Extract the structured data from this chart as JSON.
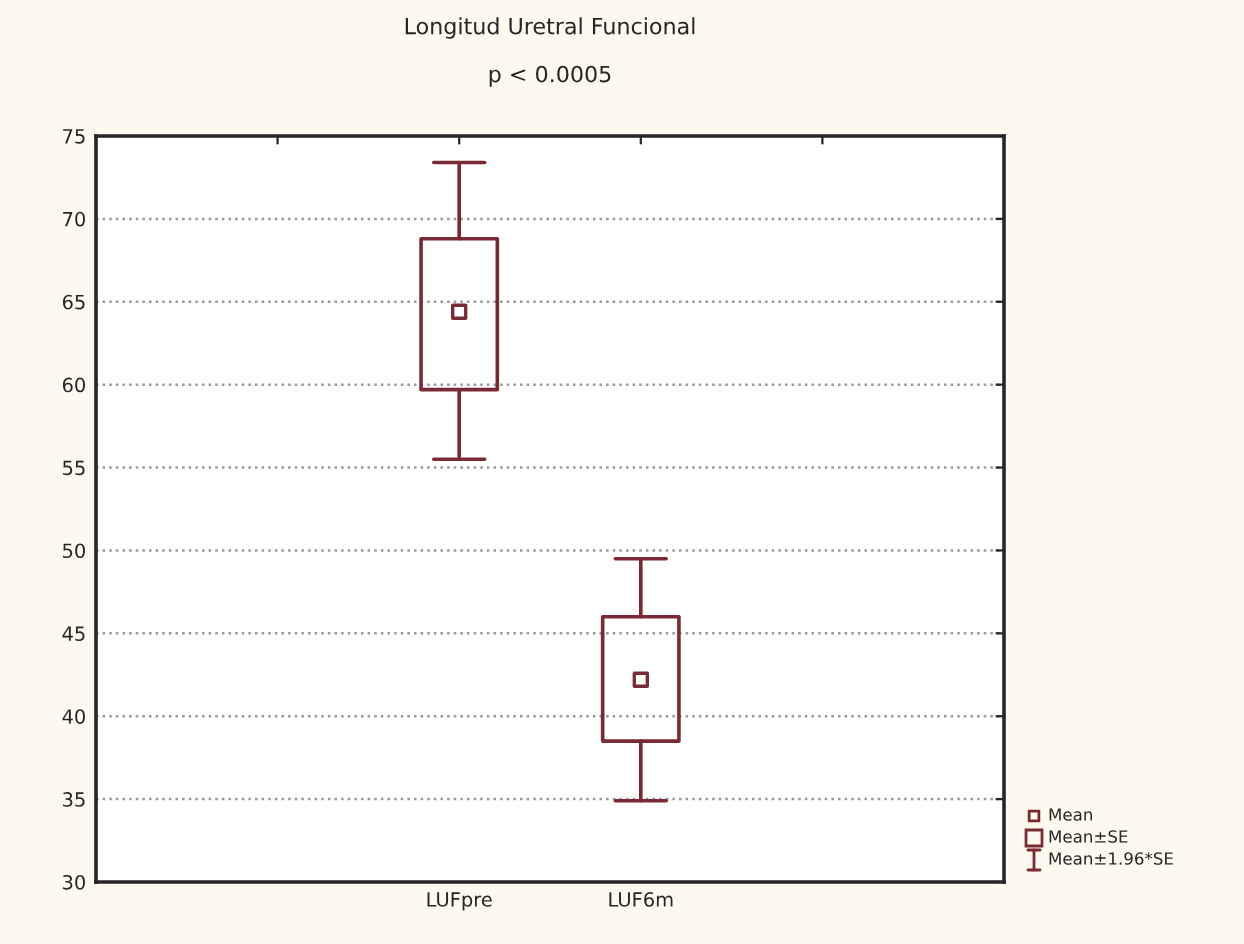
{
  "chart_data": {
    "type": "box",
    "title": "Longitud Uretral Funcional",
    "subtitle": "p < 0.0005",
    "categories": [
      "LUFpre",
      "LUF6m"
    ],
    "boxes": [
      {
        "low": 55.5,
        "q1": 59.7,
        "median": 64.4,
        "q3": 68.8,
        "high": 73.4
      },
      {
        "low": 34.9,
        "q1": 38.5,
        "median": 42.2,
        "q3": 46.0,
        "high": 49.5
      }
    ],
    "color": "#7a2a35",
    "ylim": [
      30,
      75
    ],
    "yticks": [
      30,
      35,
      40,
      45,
      50,
      55,
      60,
      65,
      70,
      75
    ],
    "grid": "y",
    "marker": "square",
    "annotations": [
      "Mean",
      "Mean±SE",
      "Mean±1.96*SE"
    ]
  }
}
